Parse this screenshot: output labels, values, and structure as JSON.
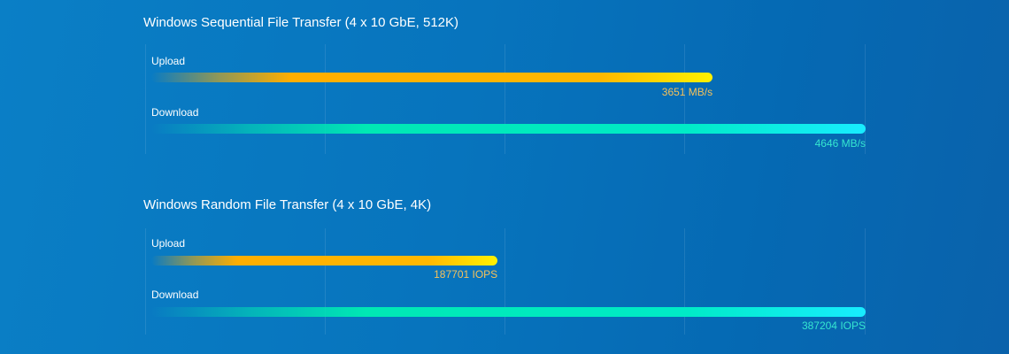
{
  "colors": {
    "background": "#0774bd",
    "upload": "#ffae00",
    "upload_end": "#fff200",
    "download": "#00e8b4",
    "download_end": "#18ecff",
    "upload_label": "#f6c25a",
    "download_label": "#35e6d0"
  },
  "chart_data": [
    {
      "type": "bar",
      "orientation": "horizontal",
      "title": "Windows Sequential File Transfer (4 x 10 GbE, 512K)",
      "categories": [
        "Upload",
        "Download"
      ],
      "values": [
        3651,
        4646
      ],
      "value_labels": [
        "3651 MB/s",
        "4646 MB/s"
      ],
      "unit": "MB/s",
      "xlim": [
        0,
        4646
      ],
      "grid": true
    },
    {
      "type": "bar",
      "orientation": "horizontal",
      "title": "Windows Random File Transfer (4 x 10 GbE, 4K)",
      "categories": [
        "Upload",
        "Download"
      ],
      "values": [
        187701,
        387204
      ],
      "value_labels": [
        "187701 IOPS",
        "387204 IOPS"
      ],
      "unit": "IOPS",
      "xlim": [
        0,
        387204
      ],
      "grid": true
    }
  ]
}
